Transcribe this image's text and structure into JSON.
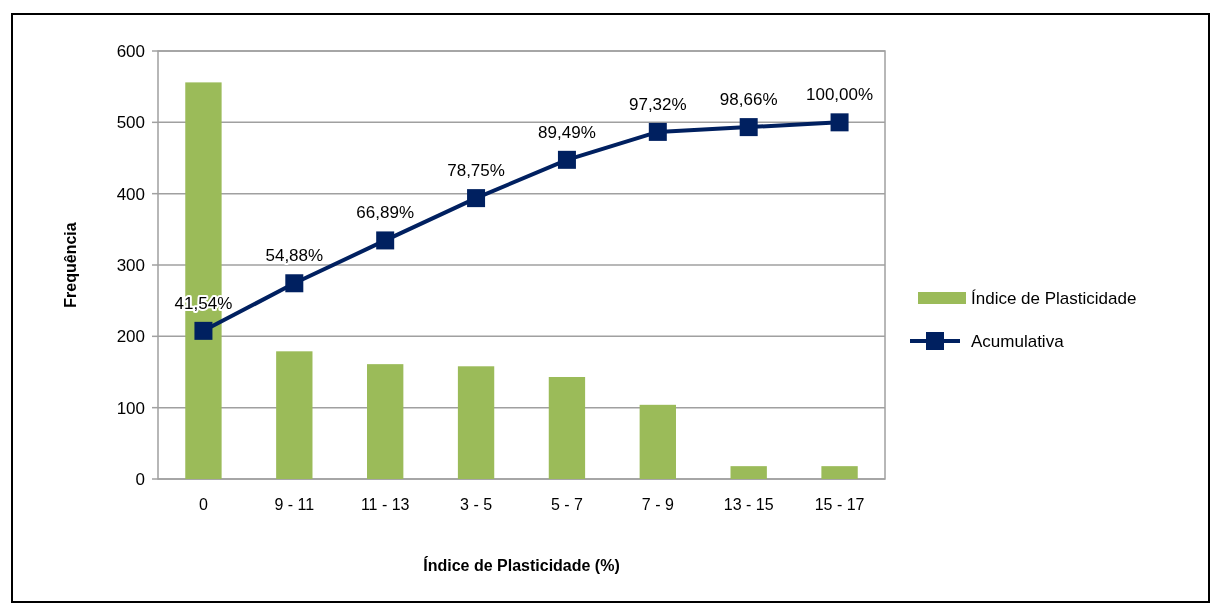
{
  "chart_data": {
    "type": "bar",
    "xlabel": "Índice de Plasticidade  (%)",
    "ylabel": "Frequência",
    "categories": [
      "0",
      "9 - 11",
      "11 - 13",
      "3 - 5",
      "5 - 7",
      "7 - 9",
      "13 - 15",
      "15 - 17"
    ],
    "series": [
      {
        "name": "Índice de Plasticidade",
        "color": "#9bbb59",
        "values": [
          556,
          179,
          161,
          158,
          143,
          104,
          18,
          18
        ]
      },
      {
        "name": "Acumulativa",
        "type": "line",
        "color": "#002060",
        "marker": "square",
        "axis": "y2",
        "values": [
          41.54,
          54.88,
          66.89,
          78.75,
          89.49,
          97.32,
          98.66,
          100.0
        ],
        "value_labels": [
          "41,54%",
          "54,88%",
          "66,89%",
          "78,75%",
          "89,49%",
          "97,32%",
          "98,66%",
          "100,00%"
        ]
      }
    ],
    "ylim": [
      0,
      600
    ],
    "y2lim": [
      0,
      120
    ],
    "yticks": [
      0,
      100,
      200,
      300,
      400,
      500,
      600
    ],
    "grid": "y",
    "legend": "right"
  }
}
